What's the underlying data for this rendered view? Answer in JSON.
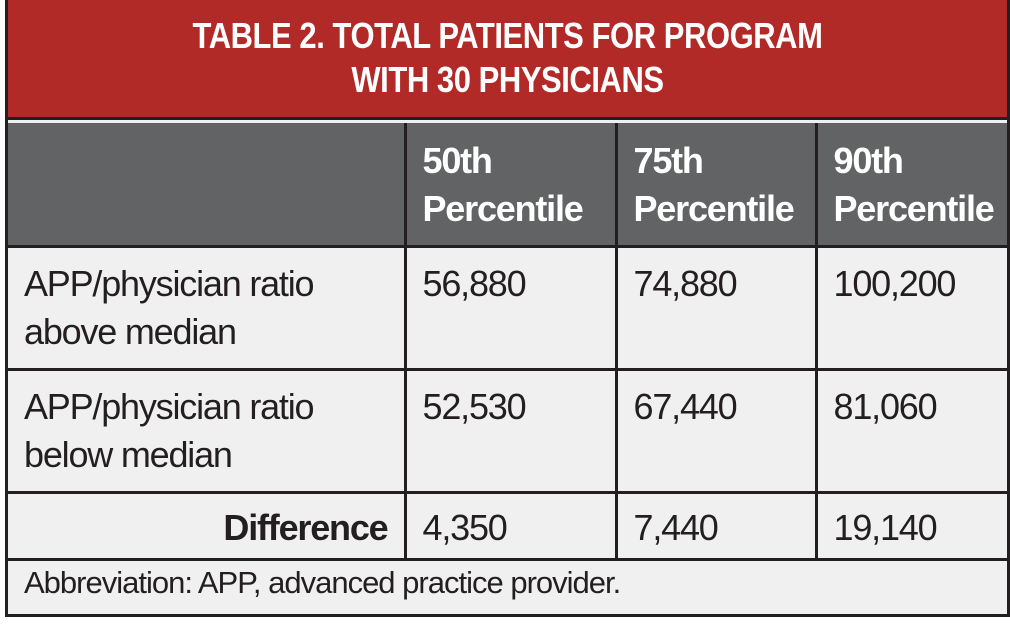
{
  "title": {
    "line1": "TABLE 2.  TOTAL PATIENTS FOR PROGRAM",
    "line2": "WITH 30 PHYSICIANS"
  },
  "columns": [
    {
      "line1": "50th",
      "line2": "Percentile"
    },
    {
      "line1": "75th",
      "line2": "Percentile"
    },
    {
      "line1": "90th",
      "line2": "Percentile"
    }
  ],
  "rows": [
    {
      "label1": "APP/physician ratio",
      "label2": "above median",
      "values": [
        "56,880",
        "74,880",
        "100,200"
      ]
    },
    {
      "label1": "APP/physician ratio",
      "label2": "below median",
      "values": [
        "52,530",
        "67,440",
        "81,060"
      ]
    }
  ],
  "difference": {
    "label": "Difference",
    "values": [
      "4,350",
      "7,440",
      "19,140"
    ]
  },
  "footnote": "Abbreviation: APP, advanced practice provider.",
  "colors": {
    "title_bg": "#b22a27",
    "header_bg": "#626365",
    "body_bg": "#eff0ef",
    "border": "#231f20"
  }
}
